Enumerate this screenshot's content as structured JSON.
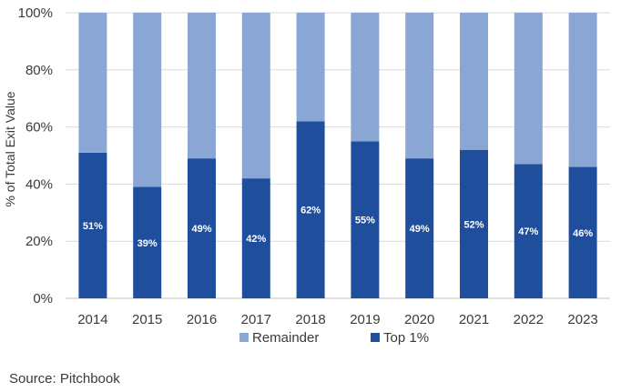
{
  "chart_data": {
    "type": "bar",
    "stacked": true,
    "categories": [
      "2014",
      "2015",
      "2016",
      "2017",
      "2018",
      "2019",
      "2020",
      "2021",
      "2022",
      "2023"
    ],
    "series": [
      {
        "name": "Top 1%",
        "values": [
          51,
          39,
          49,
          42,
          62,
          55,
          49,
          52,
          47,
          46
        ],
        "color": "#1f4e9c"
      },
      {
        "name": "Remainder",
        "values": [
          49,
          61,
          51,
          58,
          38,
          45,
          51,
          48,
          53,
          54
        ],
        "color": "#8aa6d4"
      }
    ],
    "data_labels": [
      "51%",
      "39%",
      "49%",
      "42%",
      "62%",
      "55%",
      "49%",
      "52%",
      "47%",
      "46%"
    ],
    "ylabel": "% of Total Exit Value",
    "ylim": [
      0,
      100
    ],
    "yticks": [
      "0%",
      "20%",
      "40%",
      "60%",
      "80%",
      "100%"
    ],
    "ytick_values": [
      0,
      20,
      40,
      60,
      80,
      100
    ],
    "grid": true,
    "legend": {
      "position": "bottom",
      "entries": [
        "Remainder",
        "Top 1%"
      ]
    }
  },
  "source": "Source: Pitchbook",
  "colors": {
    "top1": "#1f4e9c",
    "remainder": "#8aa6d4",
    "grid": "#d9d9d9",
    "text": "#3a3a3a"
  }
}
